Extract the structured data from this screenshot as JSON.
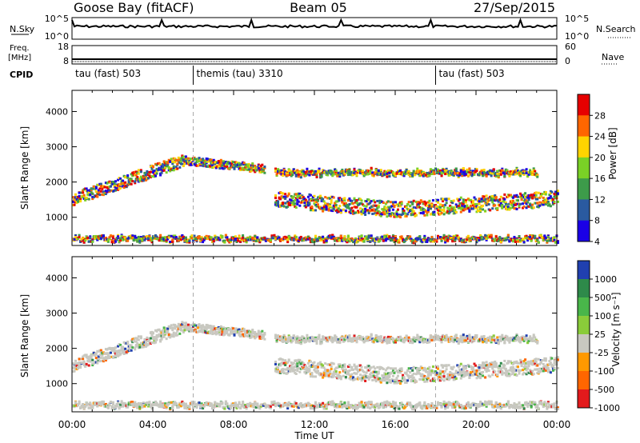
{
  "header": {
    "title_left": "Goose Bay (fitACF)",
    "title_center": "Beam 05",
    "title_right": "27/Sep/2015"
  },
  "noise_panel": {
    "left_label": "N.Sky",
    "left_ticks": [
      "10^5",
      "10^0"
    ],
    "right_label": "N.Search",
    "right_ticks": [
      "10^5",
      "10^0"
    ]
  },
  "freq_panel": {
    "left_label_line1": "Freq.",
    "left_label_line2": "[MHz]",
    "left_ticks": [
      "18",
      "8"
    ],
    "right_label": "Nave",
    "right_ticks": [
      "60",
      "0"
    ]
  },
  "cpid": {
    "label": "CPID",
    "segments": [
      {
        "start_hour": 0,
        "label": "tau (fast) 503"
      },
      {
        "start_hour": 6,
        "label": "themis (tau) 3310"
      },
      {
        "start_hour": 18,
        "label": "tau (fast) 503"
      }
    ]
  },
  "chart_data": [
    {
      "type": "heatmap",
      "name": "power",
      "ylabel": "Slant Range [km]",
      "yticks": [
        1000,
        2000,
        3000,
        4000
      ],
      "ylim": [
        200,
        4600
      ],
      "xlim": [
        0,
        24
      ],
      "colorbar": {
        "label": "Power [dB]",
        "ticks": [
          "28",
          "24",
          "20",
          "16",
          "12",
          "8",
          "4"
        ],
        "colors": [
          "#e60000",
          "#ff6600",
          "#ffd400",
          "#7ad126",
          "#3d9b4a",
          "#2a5aa0",
          "#1a00e6"
        ]
      }
    },
    {
      "type": "heatmap",
      "name": "velocity",
      "ylabel": "Slant Range [km]",
      "yticks": [
        1000,
        2000,
        3000,
        4000
      ],
      "ylim": [
        200,
        4600
      ],
      "xlim": [
        0,
        24
      ],
      "xticks": [
        "00:00",
        "04:00",
        "08:00",
        "12:00",
        "16:00",
        "20:00",
        "00:00"
      ],
      "xlabel": "Time UT",
      "colorbar": {
        "label": "Velocity [m s⁻¹]",
        "ticks": [
          "1000",
          "500",
          "100",
          "25",
          "-25",
          "-100",
          "-500",
          "-1000"
        ],
        "colors": [
          "#2040b0",
          "#2e8a4a",
          "#49b64a",
          "#8acc3a",
          "#c8c8c0",
          "#ff9900",
          "#ff6600",
          "#e31a1c"
        ]
      }
    }
  ],
  "colors": {
    "power_strong": "#e60000",
    "power_mid": "#ffd400",
    "power_weak": "#2a5aa0",
    "velocity_ground": "#c8c8c0",
    "velocity_toward": "#2e8a4a",
    "velocity_away": "#ff9900"
  }
}
